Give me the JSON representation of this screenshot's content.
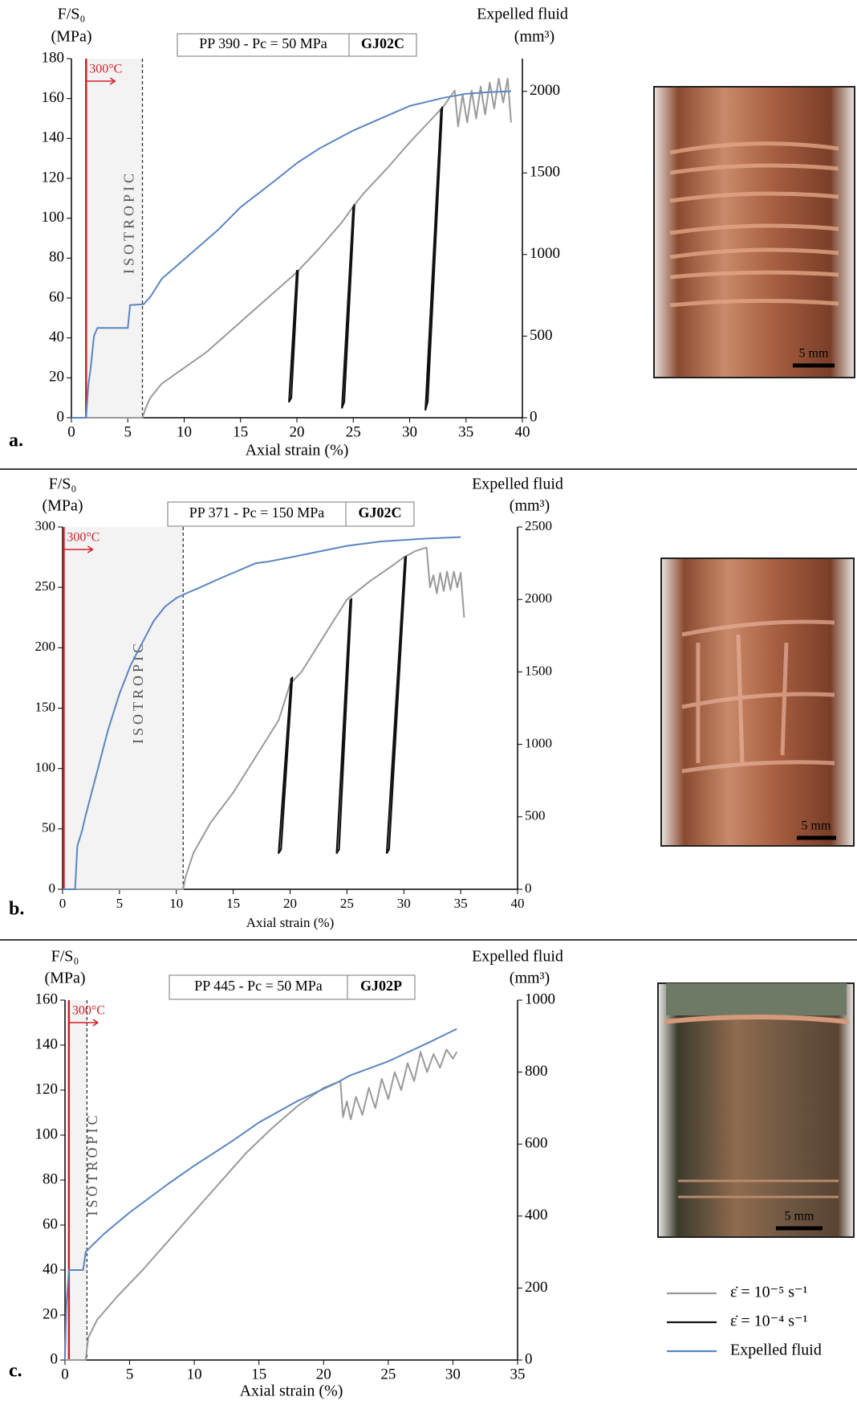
{
  "chart_data": [
    {
      "type": "line",
      "panel_label": "a.",
      "ylabel": [
        "F/S₀",
        "(MPa)"
      ],
      "y2label": [
        "Expelled fluid",
        "(mm³)"
      ],
      "xlabel": "Axial strain (%)",
      "test_label": "PP 390 - Pc = 50 MPa",
      "sample": "GJ02C",
      "heating": {
        "label": "300°C",
        "x": 1.3
      },
      "isotropic": {
        "label": "ISOTROPIC",
        "x": 6.3
      },
      "xlim": [
        0,
        40
      ],
      "xticks": [
        0,
        5,
        10,
        15,
        20,
        25,
        30,
        35,
        40
      ],
      "ylim": [
        0,
        180
      ],
      "yticks": [
        0,
        20,
        40,
        60,
        80,
        100,
        120,
        140,
        160,
        180
      ],
      "y2lim": [
        0,
        2200
      ],
      "y2ticks": [
        0,
        500,
        1000,
        1500,
        2000
      ],
      "series": [
        {
          "color": "#9a9a9a",
          "x": [
            0,
            6.3,
            6.6,
            7,
            8,
            10,
            12,
            14,
            16,
            18,
            20,
            22,
            24,
            25,
            26,
            28,
            30,
            32,
            33,
            34,
            34.3,
            34.7,
            35.1,
            35.5,
            35.9,
            36.3,
            36.7,
            37.1,
            37.5,
            37.9,
            38.3,
            38.7,
            39
          ],
          "values": [
            0,
            0,
            5,
            10,
            17,
            25,
            33,
            43,
            53,
            63,
            73,
            85,
            98,
            106,
            113,
            125,
            138,
            150,
            156,
            164,
            146,
            162,
            148,
            164,
            150,
            166,
            152,
            168,
            155,
            170,
            158,
            170,
            148
          ]
        },
        {
          "color": "#111111",
          "x": [
            20,
            19.3,
            19.5,
            20.1
          ],
          "values": [
            74,
            8,
            10,
            74
          ]
        },
        {
          "color": "#111111",
          "x": [
            25,
            24,
            24.2,
            25.1
          ],
          "values": [
            106,
            5,
            8,
            107
          ]
        },
        {
          "color": "#111111",
          "x": [
            32.8,
            31.4,
            31.6,
            32.9
          ],
          "values": [
            155,
            4,
            8,
            156
          ]
        },
        {
          "color": "#5b86c0",
          "axis": "y2",
          "x": [
            0,
            1.3,
            1.5,
            1.7,
            2,
            2.3,
            5,
            5.2,
            6.4,
            7,
            8,
            10,
            13,
            15,
            18,
            20,
            22,
            25,
            28,
            30,
            33,
            35,
            37,
            39
          ],
          "values": [
            0,
            0,
            200,
            300,
            500,
            550,
            550,
            690,
            695,
            740,
            850,
            970,
            1150,
            1290,
            1450,
            1560,
            1650,
            1760,
            1850,
            1910,
            1960,
            1985,
            1995,
            2000
          ]
        }
      ]
    },
    {
      "type": "line",
      "panel_label": "b.",
      "ylabel": [
        "F/S₀",
        "(MPa)"
      ],
      "y2label": [
        "Expelled fluid",
        "(mm³)"
      ],
      "xlabel": "Axial strain (%)",
      "test_label": "PP 371 - Pc = 150 MPa",
      "sample": "GJ02C",
      "heating": {
        "label": "300°C",
        "x": 0.1
      },
      "isotropic": {
        "label": "ISOTROPIC",
        "x": 10.6
      },
      "xlim": [
        0,
        40
      ],
      "xticks": [
        0,
        5,
        10,
        15,
        20,
        25,
        30,
        35,
        40
      ],
      "ylim": [
        0,
        300
      ],
      "yticks": [
        0,
        50,
        100,
        150,
        200,
        250,
        300
      ],
      "y2lim": [
        0,
        2500
      ],
      "y2ticks": [
        0,
        500,
        1000,
        1500,
        2000,
        2500
      ],
      "series": [
        {
          "color": "#9a9a9a",
          "x": [
            0,
            10.6,
            10.8,
            11.5,
            13,
            15,
            17,
            19,
            20,
            21,
            23,
            25,
            27,
            29,
            30,
            31,
            32,
            32.3,
            32.6,
            32.9,
            33.2,
            33.5,
            33.8,
            34.1,
            34.4,
            34.7,
            35,
            35.3
          ],
          "values": [
            0,
            0,
            10,
            30,
            55,
            80,
            110,
            140,
            170,
            180,
            210,
            240,
            255,
            268,
            275,
            280,
            283,
            250,
            260,
            245,
            262,
            247,
            263,
            248,
            263,
            250,
            262,
            225
          ]
        },
        {
          "color": "#111111",
          "x": [
            20.1,
            19,
            19.2,
            20.2
          ],
          "values": [
            175,
            30,
            33,
            176
          ]
        },
        {
          "color": "#111111",
          "x": [
            25.3,
            24.1,
            24.3,
            25.4
          ],
          "values": [
            240,
            30,
            33,
            241
          ]
        },
        {
          "color": "#111111",
          "x": [
            30.1,
            28.5,
            28.7,
            30.2
          ],
          "values": [
            275,
            30,
            33,
            276
          ]
        },
        {
          "color": "#5b86c0",
          "axis": "y2",
          "x": [
            0,
            1.1,
            1.3,
            1.7,
            2,
            3,
            4,
            5,
            6,
            7,
            8,
            9,
            10,
            10.8,
            12,
            14,
            17,
            18,
            20,
            25,
            28,
            32,
            35
          ],
          "values": [
            0,
            0,
            300,
            400,
            500,
            800,
            1100,
            1350,
            1550,
            1700,
            1850,
            1950,
            2010,
            2040,
            2080,
            2150,
            2250,
            2260,
            2290,
            2370,
            2400,
            2420,
            2430
          ]
        }
      ]
    },
    {
      "type": "line",
      "panel_label": "c.",
      "ylabel": [
        "F/S₀",
        "(MPa)"
      ],
      "y2label": [
        "Expelled fluid",
        "(mm³)"
      ],
      "xlabel": "Axial strain (%)",
      "test_label": "PP 445 - Pc = 50 MPa",
      "sample": "GJ02P",
      "heating": {
        "label": "300°C",
        "x": 0.3
      },
      "isotropic": {
        "label": "ISOTROPIC",
        "x": 1.7
      },
      "xlim": [
        0,
        35
      ],
      "xticks": [
        0,
        5,
        10,
        15,
        20,
        25,
        30,
        35
      ],
      "ylim": [
        0,
        160
      ],
      "yticks": [
        0,
        20,
        40,
        60,
        80,
        100,
        120,
        140,
        160
      ],
      "y2lim": [
        0,
        1000
      ],
      "y2ticks": [
        0,
        200,
        400,
        600,
        800,
        1000
      ],
      "series": [
        {
          "color": "#9a9a9a",
          "x": [
            0,
            1.6,
            1.8,
            2.5,
            4,
            6,
            8,
            10,
            12,
            14,
            16,
            18,
            20,
            21.3,
            21.5,
            21.8,
            22.1,
            22.5,
            23,
            23.5,
            24,
            24.5,
            25,
            25.5,
            26,
            26.5,
            27,
            27.5,
            28,
            28.5,
            29,
            29.5,
            30,
            30.3
          ],
          "values": [
            0,
            0,
            10,
            18,
            28,
            40,
            53,
            66,
            79,
            92,
            103,
            113,
            121,
            124,
            108,
            115,
            107,
            117,
            109,
            121,
            112,
            125,
            116,
            128,
            120,
            132,
            124,
            137,
            128,
            136,
            130,
            138,
            134,
            137
          ]
        },
        {
          "color": "#5b86c0",
          "axis": "y2",
          "x": [
            0,
            0.1,
            0.3,
            1.4,
            1.6,
            2,
            3,
            5,
            8,
            10,
            13,
            15,
            18,
            21,
            22,
            25,
            28,
            30,
            30.3
          ],
          "values": [
            0,
            150,
            250,
            250,
            300,
            315,
            350,
            410,
            490,
            540,
            610,
            660,
            720,
            770,
            790,
            830,
            880,
            915,
            920
          ]
        }
      ],
      "legend": [
        {
          "label": "ε̇ = 10⁻⁵ s⁻¹",
          "color": "#9a9a9a"
        },
        {
          "label": "ε̇ = 10⁻⁴ s⁻¹",
          "color": "#111111"
        },
        {
          "label": "Expelled fluid",
          "color": "#5b86c0"
        }
      ]
    }
  ],
  "photos": [
    {
      "scale_bar": "5 mm"
    },
    {
      "scale_bar": "5 mm"
    },
    {
      "scale_bar": "5 mm"
    }
  ]
}
